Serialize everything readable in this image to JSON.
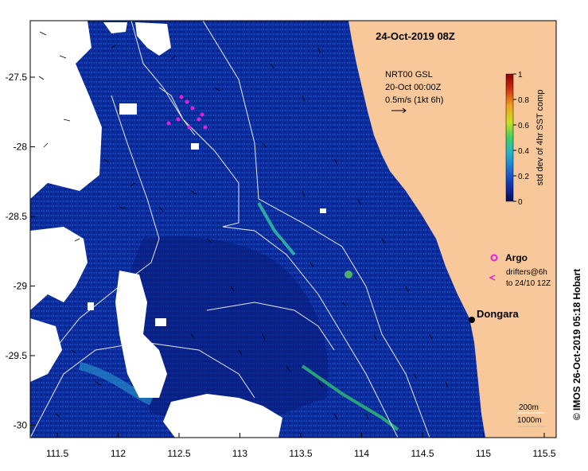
{
  "title": "24-Oct-2019 08Z",
  "current_legend": {
    "line1": "NRT00 GSL",
    "line2": "20-Oct 00:00Z",
    "line3": "0.5m/s (1kt 6h)"
  },
  "colorbar": {
    "label": "std dev of 4hr SST comp",
    "ticks": [
      "0",
      "0.2",
      "0.4",
      "0.6",
      "0.8",
      "1"
    ],
    "colors": [
      "#0a0a5a",
      "#1430a8",
      "#1e6fd0",
      "#27b3c8",
      "#3fcf60",
      "#c8e020",
      "#f0a020",
      "#d03010",
      "#8a0000"
    ]
  },
  "legend": {
    "argo_label": "Argo",
    "drifters_line1": "drifters@6h",
    "drifters_line2": "to 24/10 12Z"
  },
  "place": {
    "name": "Dongara"
  },
  "depth_legend": {
    "contour1": "200m",
    "contour2": "1000m"
  },
  "credit": "© IMOS 26-Oct-2019 05:18 Hobart",
  "axes": {
    "x_ticks": [
      "111.5",
      "112",
      "112.5",
      "113",
      "113.5",
      "114",
      "114.5",
      "115",
      "115.5"
    ],
    "y_ticks": [
      "-27.5",
      "-28",
      "-28.5",
      "-29",
      "-29.5",
      "-30"
    ]
  },
  "colors": {
    "ocean": "#0c2a9a",
    "land": "#f8c89a",
    "cloud": "#ffffff",
    "argo": "#e020e0",
    "contour": "#ffffff"
  }
}
